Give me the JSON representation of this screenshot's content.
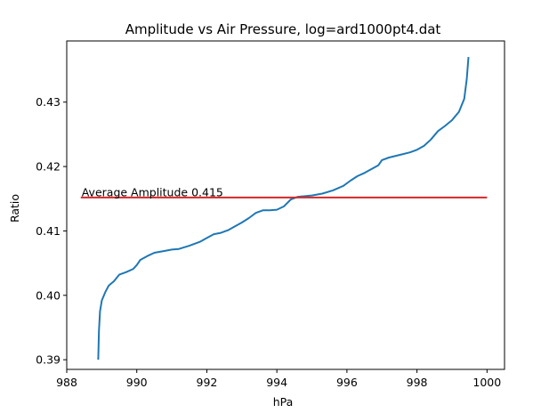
{
  "chart_data": {
    "type": "line",
    "title": "Amplitude vs Air Pressure, log=ard1000pt4.dat",
    "xlabel": "hPa",
    "ylabel": "Ratio",
    "xlim": [
      988.0,
      1000.5
    ],
    "ylim": [
      0.3885,
      0.4395
    ],
    "x_ticks": [
      988,
      990,
      992,
      994,
      996,
      998,
      1000
    ],
    "x_tick_labels": [
      "988",
      "990",
      "992",
      "994",
      "996",
      "998",
      "1000"
    ],
    "y_ticks": [
      0.39,
      0.4,
      0.41,
      0.42,
      0.43
    ],
    "y_tick_labels": [
      "0.39",
      "0.40",
      "0.41",
      "0.42",
      "0.43"
    ],
    "grid": false,
    "colors": {
      "series": "#1f77b4",
      "average": "#d62728"
    },
    "series": [
      {
        "color": "#1f77b4",
        "x": [
          988.9,
          988.92,
          988.95,
          989.0,
          989.1,
          989.2,
          989.35,
          989.5,
          989.7,
          989.9,
          990.0,
          990.1,
          990.3,
          990.5,
          990.8,
          991.0,
          991.2,
          991.5,
          991.8,
          992.0,
          992.2,
          992.4,
          992.6,
          992.8,
          993.0,
          993.2,
          993.4,
          993.6,
          993.8,
          994.0,
          994.2,
          994.4,
          994.6,
          994.8,
          995.0,
          995.3,
          995.6,
          995.9,
          996.1,
          996.3,
          996.5,
          996.7,
          996.9,
          997.0,
          997.2,
          997.5,
          997.8,
          998.0,
          998.2,
          998.4,
          998.6,
          998.8,
          999.0,
          999.2,
          999.35,
          999.42,
          999.47
        ],
        "y": [
          0.39,
          0.3945,
          0.3975,
          0.3992,
          0.4005,
          0.4015,
          0.4022,
          0.4032,
          0.4036,
          0.4041,
          0.4047,
          0.4055,
          0.4061,
          0.4066,
          0.4069,
          0.4071,
          0.4072,
          0.4077,
          0.4083,
          0.4089,
          0.4095,
          0.4097,
          0.4101,
          0.4107,
          0.4113,
          0.412,
          0.4128,
          0.4132,
          0.4132,
          0.4133,
          0.4138,
          0.4149,
          0.4153,
          0.4154,
          0.4155,
          0.4158,
          0.4163,
          0.417,
          0.4178,
          0.4185,
          0.419,
          0.4196,
          0.4202,
          0.421,
          0.4214,
          0.4218,
          0.4222,
          0.4226,
          0.4232,
          0.4242,
          0.4255,
          0.4263,
          0.4272,
          0.4285,
          0.4305,
          0.4335,
          0.437
        ]
      }
    ],
    "average_line": {
      "color": "#d62728",
      "value": 0.4152,
      "x_start": 988.4,
      "x_end": 1000.0,
      "label": "Average Amplitude 0.415"
    }
  }
}
